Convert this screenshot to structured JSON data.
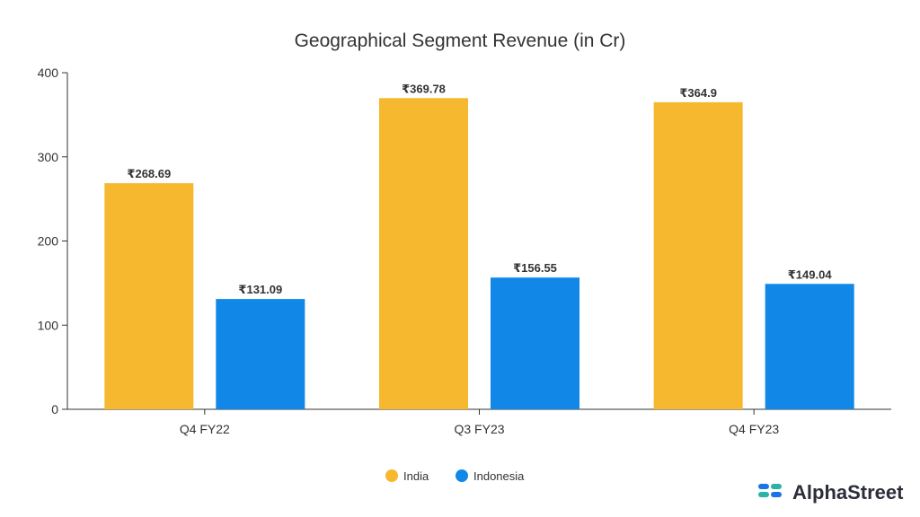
{
  "chart_data": {
    "type": "bar",
    "title": "Geographical Segment Revenue (in Cr)",
    "xlabel": "",
    "ylabel": "",
    "categories": [
      "Q4 FY22",
      "Q3 FY23",
      "Q4 FY23"
    ],
    "series": [
      {
        "name": "India",
        "color": "#F5B82E",
        "values": [
          268.69,
          369.78,
          364.9
        ],
        "labels": [
          "₹268.69",
          "₹369.78",
          "₹364.9"
        ]
      },
      {
        "name": "Indonesia",
        "color": "#1187E8",
        "values": [
          131.09,
          156.55,
          149.04
        ],
        "labels": [
          "₹131.09",
          "₹156.55",
          "₹149.04"
        ]
      }
    ],
    "ylim": [
      0,
      400
    ],
    "yticks": [
      0,
      100,
      200,
      300,
      400
    ],
    "grid": false,
    "legend": "bottom-center"
  },
  "brand": {
    "name": "AlphaStreet",
    "icon": "alphastreet-logo-icon",
    "color_dark": "#2b2d3a",
    "color_teal": "#2bb3a6",
    "color_blue": "#1a73e8"
  }
}
